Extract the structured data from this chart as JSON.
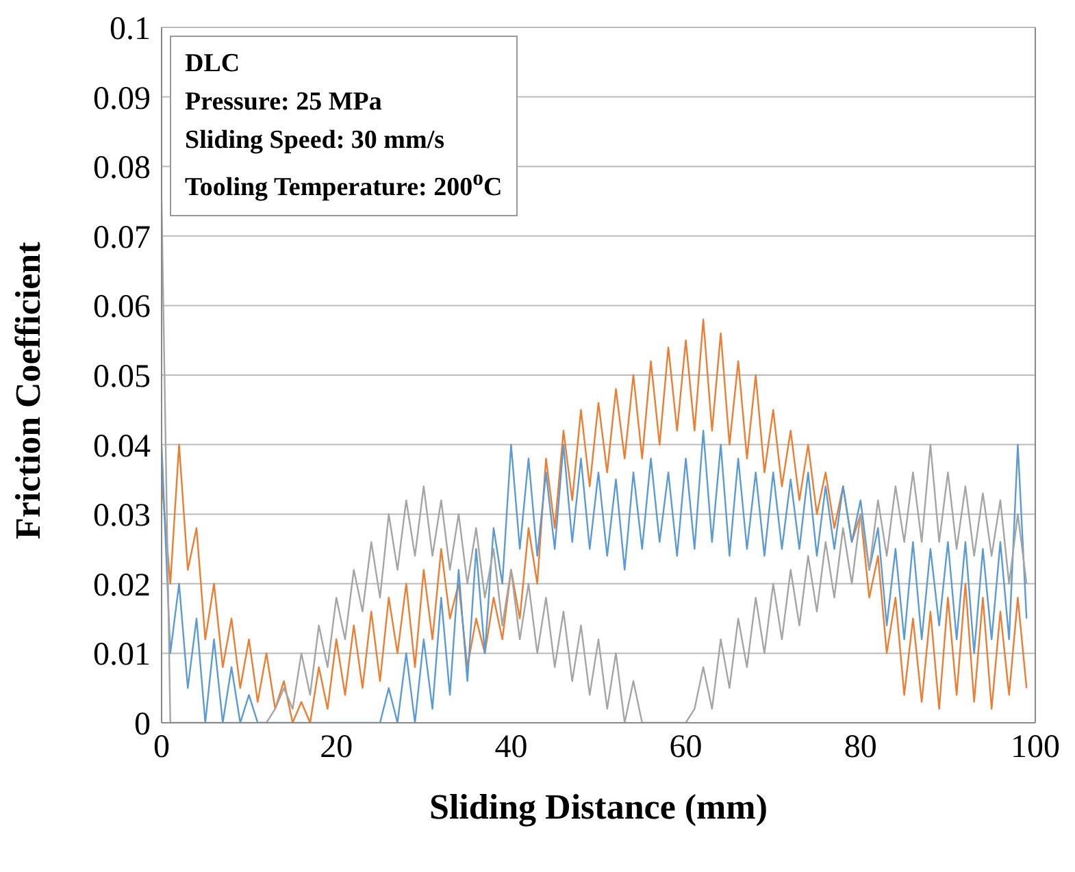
{
  "chart_data": {
    "type": "line",
    "xlabel": "Sliding Distance  (mm)",
    "ylabel": "Friction Coefficient",
    "annotations": [
      "DLC",
      "Pressure: 25 MPa",
      "Sliding Speed: 30 mm/s",
      "Tooling Temperature: 200$^{o}$C"
    ],
    "x": [
      0,
      1,
      2,
      3,
      4,
      5,
      6,
      7,
      8,
      9,
      10,
      11,
      12,
      13,
      14,
      15,
      16,
      17,
      18,
      19,
      20,
      21,
      22,
      23,
      24,
      25,
      26,
      27,
      28,
      29,
      30,
      31,
      32,
      33,
      34,
      35,
      36,
      37,
      38,
      39,
      40,
      41,
      42,
      43,
      44,
      45,
      46,
      47,
      48,
      49,
      50,
      51,
      52,
      53,
      54,
      55,
      56,
      57,
      58,
      59,
      60,
      61,
      62,
      63,
      64,
      65,
      66,
      67,
      68,
      69,
      70,
      71,
      72,
      73,
      74,
      75,
      76,
      77,
      78,
      79,
      80,
      81,
      82,
      83,
      84,
      85,
      86,
      87,
      88,
      89,
      90,
      91,
      92,
      93,
      94,
      95,
      96,
      97,
      98,
      99
    ],
    "series": [
      {
        "color": "#ed7d31",
        "values": [
          0.035,
          0.02,
          0.04,
          0.022,
          0.028,
          0.012,
          0.02,
          0.008,
          0.015,
          0.005,
          0.012,
          0.003,
          0.01,
          0.002,
          0.006,
          0,
          0.003,
          0,
          0.008,
          0.002,
          0.012,
          0.004,
          0.014,
          0.005,
          0.016,
          0.006,
          0.018,
          0.01,
          0.02,
          0.008,
          0.022,
          0.012,
          0.025,
          0.015,
          0.02,
          0.008,
          0.015,
          0.01,
          0.018,
          0.012,
          0.022,
          0.015,
          0.028,
          0.02,
          0.038,
          0.028,
          0.042,
          0.032,
          0.045,
          0.034,
          0.046,
          0.036,
          0.048,
          0.038,
          0.05,
          0.038,
          0.052,
          0.04,
          0.054,
          0.042,
          0.055,
          0.042,
          0.058,
          0.042,
          0.056,
          0.04,
          0.052,
          0.038,
          0.05,
          0.036,
          0.045,
          0.034,
          0.042,
          0.032,
          0.04,
          0.03,
          0.036,
          0.028,
          0.034,
          0.026,
          0.03,
          0.018,
          0.024,
          0.01,
          0.018,
          0.004,
          0.015,
          0.003,
          0.016,
          0.002,
          0.018,
          0.004,
          0.02,
          0.003,
          0.018,
          0.002,
          0.016,
          0.004,
          0.018,
          0.005
        ]
      },
      {
        "color": "#5b9bd5",
        "values": [
          0.04,
          0.01,
          0.02,
          0.005,
          0.015,
          0,
          0.012,
          0,
          0.008,
          0,
          0.004,
          0,
          0,
          0,
          0,
          0,
          0,
          0,
          0,
          0,
          0,
          0,
          0,
          0,
          0,
          0,
          0.005,
          0,
          0.01,
          0,
          0.012,
          0.002,
          0.018,
          0.004,
          0.022,
          0.006,
          0.025,
          0.01,
          0.028,
          0.02,
          0.04,
          0.025,
          0.038,
          0.024,
          0.036,
          0.025,
          0.04,
          0.026,
          0.038,
          0.025,
          0.036,
          0.024,
          0.035,
          0.022,
          0.036,
          0.025,
          0.038,
          0.026,
          0.036,
          0.024,
          0.038,
          0.025,
          0.042,
          0.026,
          0.04,
          0.024,
          0.038,
          0.025,
          0.036,
          0.024,
          0.036,
          0.025,
          0.035,
          0.025,
          0.036,
          0.024,
          0.034,
          0.025,
          0.034,
          0.026,
          0.032,
          0.022,
          0.028,
          0.014,
          0.025,
          0.012,
          0.026,
          0.012,
          0.025,
          0.014,
          0.026,
          0.012,
          0.026,
          0.01,
          0.025,
          0.012,
          0.026,
          0.012,
          0.04,
          0.015
        ]
      },
      {
        "color": "#a5a5a5",
        "values": [
          0.075,
          0,
          0,
          0,
          0,
          0,
          0,
          0,
          0,
          0,
          0,
          0,
          0,
          0.002,
          0.005,
          0.002,
          0.01,
          0.004,
          0.014,
          0.008,
          0.018,
          0.012,
          0.022,
          0.016,
          0.026,
          0.018,
          0.03,
          0.022,
          0.032,
          0.024,
          0.034,
          0.024,
          0.032,
          0.022,
          0.03,
          0.02,
          0.028,
          0.018,
          0.025,
          0.014,
          0.022,
          0.012,
          0.02,
          0.01,
          0.018,
          0.008,
          0.016,
          0.006,
          0.014,
          0.004,
          0.012,
          0.002,
          0.01,
          0,
          0.006,
          0,
          0,
          0,
          0,
          0,
          0,
          0.002,
          0.008,
          0.002,
          0.012,
          0.005,
          0.015,
          0.008,
          0.018,
          0.01,
          0.02,
          0.012,
          0.022,
          0.014,
          0.024,
          0.016,
          0.026,
          0.018,
          0.028,
          0.02,
          0.03,
          0.022,
          0.032,
          0.024,
          0.034,
          0.026,
          0.036,
          0.026,
          0.04,
          0.026,
          0.036,
          0.025,
          0.034,
          0.024,
          0.033,
          0.024,
          0.032,
          0.02,
          0.03,
          0.02
        ]
      }
    ],
    "xlim": [
      0,
      100
    ],
    "xticks": [
      0,
      20,
      40,
      60,
      80,
      100
    ],
    "ylim": [
      0,
      0.1
    ],
    "yticks": [
      0,
      0.01,
      0.02,
      0.03,
      0.04,
      0.05,
      0.06,
      0.07,
      0.08,
      0.09,
      0.1
    ],
    "grid": "y",
    "marker": "none",
    "line_style": "solid"
  }
}
